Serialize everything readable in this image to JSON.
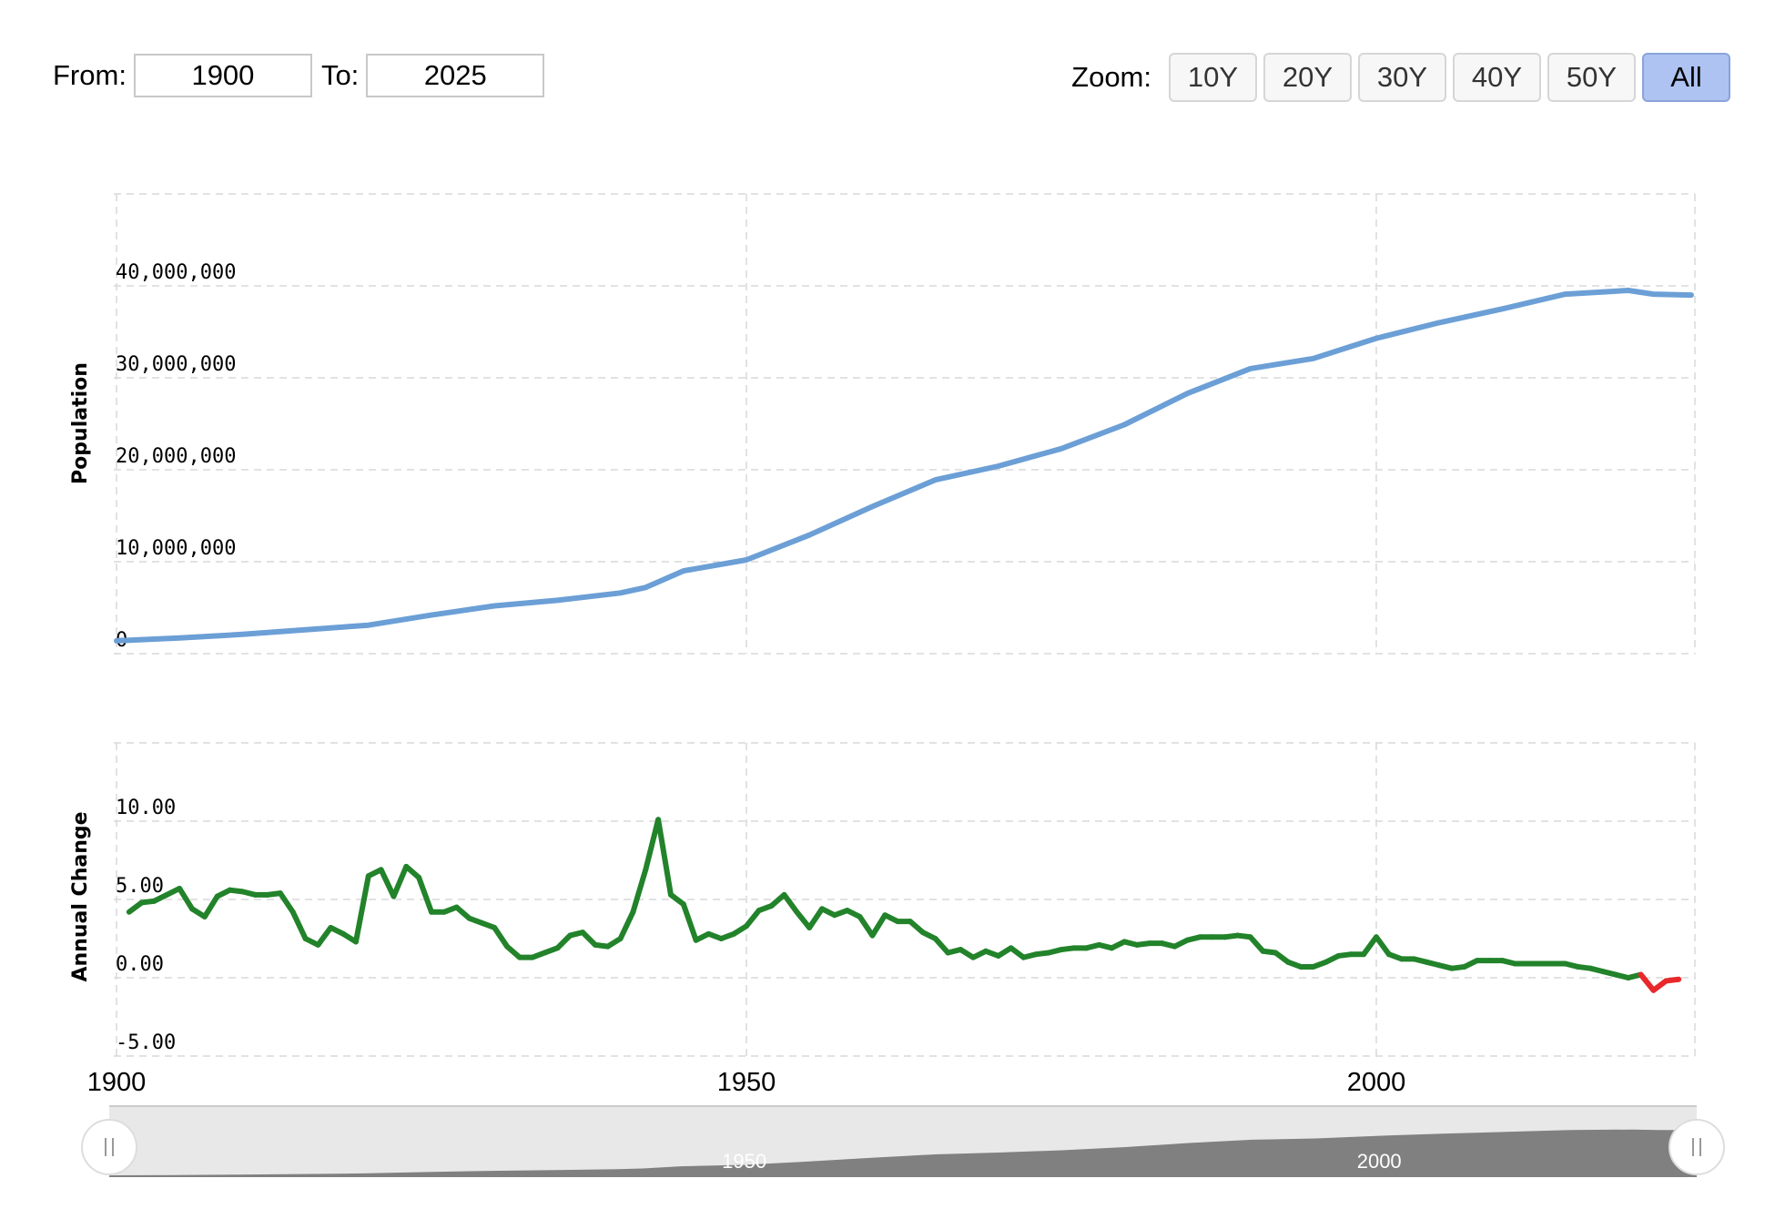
{
  "range_selector": {
    "from_label": "From:",
    "from_value": "1900",
    "to_label": "To:",
    "to_value": "2025"
  },
  "zoom": {
    "label": "Zoom:",
    "buttons": [
      "10Y",
      "20Y",
      "30Y",
      "40Y",
      "50Y",
      "All"
    ],
    "active": "All"
  },
  "colors": {
    "population_line": "#6b9fd6",
    "change_positive": "#22832a",
    "change_negative": "#e8282b",
    "grid": "#d9d9d9",
    "navigator_fill": "#808080",
    "navigator_bg": "#e8e8e8"
  },
  "chart_data": [
    {
      "type": "line",
      "ylabel": "Population",
      "ylim": [
        0,
        50000000
      ],
      "yticks": [
        "0",
        "10,000,000",
        "20,000,000",
        "30,000,000",
        "40,000,000"
      ],
      "xlim": [
        1900,
        2025
      ],
      "xticks": [
        "1900",
        "1950",
        "2000"
      ],
      "grid": true,
      "series": [
        {
          "points": [
            [
              1900,
              1400000
            ],
            [
              1905,
              1700000
            ],
            [
              1910,
              2100000
            ],
            [
              1915,
              2600000
            ],
            [
              1920,
              3100000
            ],
            [
              1925,
              4200000
            ],
            [
              1930,
              5200000
            ],
            [
              1935,
              5800000
            ],
            [
              1940,
              6600000
            ],
            [
              1942,
              7200000
            ],
            [
              1945,
              9000000
            ],
            [
              1950,
              10200000
            ],
            [
              1955,
              12900000
            ],
            [
              1960,
              16000000
            ],
            [
              1965,
              18900000
            ],
            [
              1970,
              20400000
            ],
            [
              1975,
              22300000
            ],
            [
              1980,
              24900000
            ],
            [
              1985,
              28300000
            ],
            [
              1990,
              31000000
            ],
            [
              1995,
              32100000
            ],
            [
              2000,
              34300000
            ],
            [
              2005,
              36000000
            ],
            [
              2010,
              37500000
            ],
            [
              2015,
              39100000
            ],
            [
              2020,
              39500000
            ],
            [
              2022,
              39100000
            ],
            [
              2025,
              39000000
            ]
          ]
        }
      ]
    },
    {
      "type": "line",
      "ylabel": "Annual Change",
      "ylim": [
        -5,
        15
      ],
      "yticks": [
        "-5.00",
        "0.00",
        "5.00",
        "10.00"
      ],
      "xlim": [
        1900,
        2025
      ],
      "grid": true,
      "series": [
        {
          "points": [
            [
              1901,
              4.2
            ],
            [
              1902,
              4.8
            ],
            [
              1903,
              4.9
            ],
            [
              1904,
              5.3
            ],
            [
              1905,
              5.7
            ],
            [
              1906,
              4.4
            ],
            [
              1907,
              3.9
            ],
            [
              1908,
              5.2
            ],
            [
              1909,
              5.6
            ],
            [
              1910,
              5.5
            ],
            [
              1911,
              5.3
            ],
            [
              1912,
              5.3
            ],
            [
              1913,
              5.4
            ],
            [
              1914,
              4.2
            ],
            [
              1915,
              2.5
            ],
            [
              1916,
              2.1
            ],
            [
              1917,
              3.2
            ],
            [
              1918,
              2.8
            ],
            [
              1919,
              2.3
            ],
            [
              1920,
              6.5
            ],
            [
              1921,
              6.9
            ],
            [
              1922,
              5.2
            ],
            [
              1923,
              7.1
            ],
            [
              1924,
              6.4
            ],
            [
              1925,
              4.2
            ],
            [
              1926,
              4.2
            ],
            [
              1927,
              4.5
            ],
            [
              1928,
              3.8
            ],
            [
              1929,
              3.5
            ],
            [
              1930,
              3.2
            ],
            [
              1931,
              2.0
            ],
            [
              1932,
              1.3
            ],
            [
              1933,
              1.3
            ],
            [
              1934,
              1.6
            ],
            [
              1935,
              1.9
            ],
            [
              1936,
              2.7
            ],
            [
              1937,
              2.9
            ],
            [
              1938,
              2.1
            ],
            [
              1939,
              2.0
            ],
            [
              1940,
              2.5
            ],
            [
              1941,
              4.2
            ],
            [
              1942,
              6.9
            ],
            [
              1943,
              10.1
            ],
            [
              1944,
              5.3
            ],
            [
              1945,
              4.7
            ],
            [
              1946,
              2.4
            ],
            [
              1947,
              2.8
            ],
            [
              1948,
              2.5
            ],
            [
              1949,
              2.8
            ],
            [
              1950,
              3.3
            ],
            [
              1951,
              4.3
            ],
            [
              1952,
              4.6
            ],
            [
              1953,
              5.3
            ],
            [
              1954,
              4.2
            ],
            [
              1955,
              3.2
            ],
            [
              1956,
              4.4
            ],
            [
              1957,
              4.0
            ],
            [
              1958,
              4.3
            ],
            [
              1959,
              3.9
            ],
            [
              1960,
              2.7
            ],
            [
              1961,
              4.0
            ],
            [
              1962,
              3.6
            ],
            [
              1963,
              3.6
            ],
            [
              1964,
              2.9
            ],
            [
              1965,
              2.5
            ],
            [
              1966,
              1.6
            ],
            [
              1967,
              1.8
            ],
            [
              1968,
              1.3
            ],
            [
              1969,
              1.7
            ],
            [
              1970,
              1.4
            ],
            [
              1971,
              1.9
            ],
            [
              1972,
              1.3
            ],
            [
              1973,
              1.5
            ],
            [
              1974,
              1.6
            ],
            [
              1975,
              1.8
            ],
            [
              1976,
              1.9
            ],
            [
              1977,
              1.9
            ],
            [
              1978,
              2.1
            ],
            [
              1979,
              1.9
            ],
            [
              1980,
              2.3
            ],
            [
              1981,
              2.1
            ],
            [
              1982,
              2.2
            ],
            [
              1983,
              2.2
            ],
            [
              1984,
              2.0
            ],
            [
              1985,
              2.4
            ],
            [
              1986,
              2.6
            ],
            [
              1987,
              2.6
            ],
            [
              1988,
              2.6
            ],
            [
              1989,
              2.7
            ],
            [
              1990,
              2.6
            ],
            [
              1991,
              1.7
            ],
            [
              1992,
              1.6
            ],
            [
              1993,
              1.0
            ],
            [
              1994,
              0.7
            ],
            [
              1995,
              0.7
            ],
            [
              1996,
              1.0
            ],
            [
              1997,
              1.4
            ],
            [
              1998,
              1.5
            ],
            [
              1999,
              1.5
            ],
            [
              2000,
              2.6
            ],
            [
              2001,
              1.5
            ],
            [
              2002,
              1.2
            ],
            [
              2003,
              1.2
            ],
            [
              2004,
              1.0
            ],
            [
              2005,
              0.8
            ],
            [
              2006,
              0.6
            ],
            [
              2007,
              0.7
            ],
            [
              2008,
              1.1
            ],
            [
              2009,
              1.1
            ],
            [
              2010,
              1.1
            ],
            [
              2011,
              0.9
            ],
            [
              2012,
              0.9
            ],
            [
              2013,
              0.9
            ],
            [
              2014,
              0.9
            ],
            [
              2015,
              0.9
            ],
            [
              2016,
              0.7
            ],
            [
              2017,
              0.6
            ],
            [
              2018,
              0.4
            ],
            [
              2019,
              0.2
            ],
            [
              2020,
              0.0
            ],
            [
              2021,
              0.2
            ],
            [
              2022,
              -0.8
            ],
            [
              2023,
              -0.2
            ],
            [
              2024,
              -0.1
            ]
          ]
        }
      ]
    }
  ],
  "navigator": {
    "xticks": [
      "1950",
      "2000"
    ]
  }
}
